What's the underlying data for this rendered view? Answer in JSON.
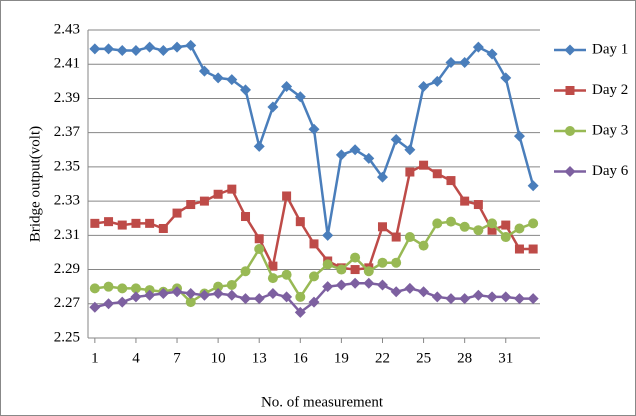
{
  "chart_data": {
    "type": "line",
    "y_label": "Bridge output(volt)",
    "x_label": "No. of measurement",
    "x": [
      1,
      2,
      3,
      4,
      5,
      6,
      7,
      8,
      9,
      10,
      11,
      12,
      13,
      14,
      15,
      16,
      17,
      18,
      19,
      20,
      21,
      22,
      23,
      24,
      25,
      26,
      27,
      28,
      29,
      30,
      31,
      32,
      33
    ],
    "xlim": [
      0.5,
      33.5
    ],
    "xticks": [
      1,
      4,
      7,
      10,
      13,
      16,
      19,
      22,
      25,
      28,
      31
    ],
    "ylim": [
      2.25,
      2.43
    ],
    "yticks": [
      2.25,
      2.27,
      2.29,
      2.31,
      2.33,
      2.35,
      2.37,
      2.39,
      2.41,
      2.43
    ],
    "grid": true,
    "legend": "right",
    "series": [
      {
        "name": "Day 1",
        "color": "#4a7ebb",
        "marker": "diamond",
        "values": [
          2.419,
          2.419,
          2.418,
          2.418,
          2.42,
          2.418,
          2.42,
          2.421,
          2.406,
          2.402,
          2.401,
          2.395,
          2.362,
          2.385,
          2.397,
          2.391,
          2.372,
          2.31,
          2.357,
          2.36,
          2.355,
          2.344,
          2.366,
          2.36,
          2.397,
          2.4,
          2.411,
          2.411,
          2.42,
          2.416,
          2.402,
          2.368,
          2.339
        ]
      },
      {
        "name": "Day 2",
        "color": "#be4b48",
        "marker": "square",
        "values": [
          2.317,
          2.318,
          2.316,
          2.317,
          2.317,
          2.314,
          2.323,
          2.328,
          2.33,
          2.334,
          2.337,
          2.321,
          2.308,
          2.292,
          2.333,
          2.318,
          2.305,
          2.295,
          2.291,
          2.29,
          2.291,
          2.315,
          2.309,
          2.347,
          2.351,
          2.346,
          2.342,
          2.33,
          2.328,
          2.313,
          2.316,
          2.302,
          2.302
        ]
      },
      {
        "name": "Day 3",
        "color": "#98b954",
        "marker": "circle",
        "values": [
          2.279,
          2.28,
          2.279,
          2.279,
          2.278,
          2.277,
          2.279,
          2.271,
          2.276,
          2.28,
          2.281,
          2.289,
          2.302,
          2.285,
          2.287,
          2.274,
          2.286,
          2.293,
          2.29,
          2.297,
          2.289,
          2.294,
          2.294,
          2.309,
          2.304,
          2.317,
          2.318,
          2.315,
          2.313,
          2.317,
          2.309,
          2.314,
          2.317
        ]
      },
      {
        "name": "Day 6",
        "color": "#7d60a0",
        "marker": "diamond",
        "values": [
          2.268,
          2.27,
          2.271,
          2.274,
          2.275,
          2.276,
          2.277,
          2.276,
          2.275,
          2.276,
          2.275,
          2.273,
          2.273,
          2.276,
          2.274,
          2.265,
          2.271,
          2.28,
          2.281,
          2.282,
          2.282,
          2.281,
          2.277,
          2.279,
          2.277,
          2.274,
          2.273,
          2.273,
          2.275,
          2.274,
          2.274,
          2.273,
          2.273
        ]
      }
    ]
  }
}
